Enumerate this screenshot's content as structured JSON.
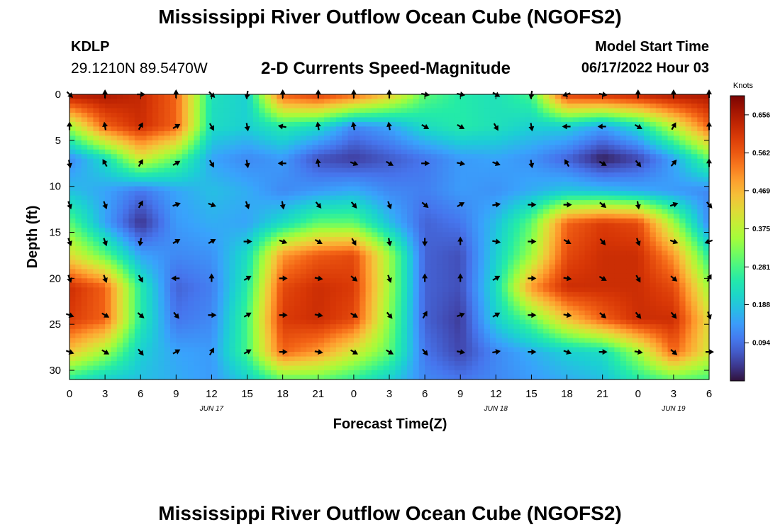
{
  "header": {
    "title": "Mississippi River Outflow Ocean Cube (NGOFS2)",
    "station_id": "KDLP",
    "coordinates": "29.1210N  89.5470W",
    "subtitle": "2-D Currents Speed-Magnitude",
    "model_start_label": "Model Start Time",
    "model_start_value": "06/17/2022 Hour 03"
  },
  "footer": {
    "title": "Mississippi River Outflow Ocean Cube (NGOFS2)"
  },
  "colors": {
    "low": "#30123b",
    "mid": "#2ef3a8",
    "high": "#7a0403",
    "arrow": "#000000"
  },
  "chart_data": {
    "type": "heatmap",
    "xlabel": "Forecast Time(Z)",
    "ylabel": "Depth (ft)",
    "colorbar_label": "Knots",
    "x_ticks": [
      {
        "hours": 0,
        "label": "0"
      },
      {
        "hours": 3,
        "label": "3"
      },
      {
        "hours": 6,
        "label": "6"
      },
      {
        "hours": 9,
        "label": "9"
      },
      {
        "hours": 12,
        "label": "12"
      },
      {
        "hours": 15,
        "label": "15"
      },
      {
        "hours": 18,
        "label": "18"
      },
      {
        "hours": 21,
        "label": "21"
      },
      {
        "hours": 24,
        "label": "0"
      },
      {
        "hours": 27,
        "label": "3"
      },
      {
        "hours": 30,
        "label": "6"
      },
      {
        "hours": 33,
        "label": "9"
      },
      {
        "hours": 36,
        "label": "12"
      },
      {
        "hours": 39,
        "label": "15"
      },
      {
        "hours": 42,
        "label": "18"
      },
      {
        "hours": 45,
        "label": "21"
      },
      {
        "hours": 48,
        "label": "0"
      },
      {
        "hours": 51,
        "label": "3"
      },
      {
        "hours": 54,
        "label": "6"
      }
    ],
    "date_labels": [
      {
        "hours": 12,
        "label": "JUN 17"
      },
      {
        "hours": 36,
        "label": "JUN 18"
      },
      {
        "hours": 51,
        "label": "JUN 19"
      }
    ],
    "xlim": [
      0,
      54
    ],
    "ylim": [
      0,
      31
    ],
    "y_ticks": [
      0,
      5,
      10,
      15,
      20,
      25,
      30
    ],
    "colorbar_ticks": [
      "0.656",
      "0.562",
      "0.469",
      "0.375",
      "0.281",
      "0.188",
      "0.094"
    ],
    "colorbar_range": [
      0.0,
      0.703
    ],
    "speed_grid": {
      "x_hours": [
        0,
        3,
        6,
        9,
        12,
        15,
        18,
        21,
        24,
        27,
        30,
        33,
        36,
        39,
        42,
        45,
        48,
        51,
        54
      ],
      "depth_ft": [
        0,
        3.5,
        7,
        10.5,
        14,
        17.5,
        21,
        24.5,
        28,
        31
      ],
      "values": [
        [
          0.66,
          0.66,
          0.63,
          0.55,
          0.23,
          0.2,
          0.56,
          0.6,
          0.55,
          0.45,
          0.3,
          0.25,
          0.23,
          0.28,
          0.6,
          0.62,
          0.64,
          0.66,
          0.66
        ],
        [
          0.35,
          0.55,
          0.62,
          0.55,
          0.22,
          0.2,
          0.25,
          0.22,
          0.12,
          0.15,
          0.22,
          0.25,
          0.23,
          0.2,
          0.2,
          0.15,
          0.22,
          0.38,
          0.55
        ],
        [
          0.12,
          0.22,
          0.4,
          0.3,
          0.15,
          0.12,
          0.14,
          0.06,
          0.04,
          0.07,
          0.1,
          0.14,
          0.15,
          0.13,
          0.08,
          0.01,
          0.05,
          0.15,
          0.3
        ],
        [
          0.18,
          0.15,
          0.1,
          0.15,
          0.18,
          0.16,
          0.12,
          0.14,
          0.16,
          0.12,
          0.11,
          0.14,
          0.13,
          0.16,
          0.19,
          0.18,
          0.16,
          0.14,
          0.12
        ],
        [
          0.3,
          0.15,
          0.03,
          0.14,
          0.16,
          0.15,
          0.22,
          0.3,
          0.3,
          0.18,
          0.08,
          0.1,
          0.18,
          0.3,
          0.55,
          0.6,
          0.58,
          0.35,
          0.12
        ],
        [
          0.42,
          0.3,
          0.15,
          0.12,
          0.13,
          0.22,
          0.5,
          0.56,
          0.58,
          0.35,
          0.08,
          0.06,
          0.2,
          0.35,
          0.58,
          0.62,
          0.62,
          0.5,
          0.25
        ],
        [
          0.62,
          0.55,
          0.25,
          0.08,
          0.11,
          0.25,
          0.58,
          0.62,
          0.6,
          0.35,
          0.08,
          0.06,
          0.22,
          0.5,
          0.62,
          0.62,
          0.62,
          0.58,
          0.35
        ],
        [
          0.6,
          0.55,
          0.25,
          0.1,
          0.12,
          0.28,
          0.6,
          0.62,
          0.58,
          0.33,
          0.08,
          0.04,
          0.2,
          0.3,
          0.45,
          0.55,
          0.62,
          0.62,
          0.42
        ],
        [
          0.45,
          0.35,
          0.2,
          0.15,
          0.14,
          0.28,
          0.55,
          0.5,
          0.4,
          0.3,
          0.1,
          0.05,
          0.12,
          0.16,
          0.2,
          0.22,
          0.35,
          0.55,
          0.4
        ],
        [
          0.25,
          0.2,
          0.18,
          0.16,
          0.14,
          0.2,
          0.3,
          0.3,
          0.26,
          0.2,
          0.12,
          0.1,
          0.12,
          0.14,
          0.16,
          0.18,
          0.25,
          0.3,
          0.28
        ]
      ]
    },
    "vectors": {
      "x_hours": [
        0,
        3,
        6,
        9,
        12,
        15,
        18,
        21,
        24,
        27,
        30,
        33,
        36,
        39,
        42,
        45,
        48,
        51,
        54
      ],
      "depth_ft": [
        0,
        3.5,
        7.5,
        12,
        16,
        20,
        24,
        28
      ],
      "direction_deg": [
        [
          135,
          0,
          90,
          0,
          135,
          190,
          0,
          0,
          0,
          0,
          100,
          100,
          120,
          190,
          250,
          100,
          0,
          0,
          0
        ],
        [
          0,
          350,
          30,
          60,
          150,
          170,
          280,
          350,
          350,
          350,
          120,
          120,
          150,
          170,
          270,
          270,
          120,
          30,
          0
        ],
        [
          170,
          330,
          30,
          60,
          150,
          170,
          270,
          350,
          110,
          120,
          90,
          100,
          110,
          170,
          330,
          120,
          140,
          40,
          0
        ],
        [
          160,
          160,
          30,
          70,
          110,
          160,
          170,
          140,
          140,
          160,
          130,
          60,
          80,
          90,
          90,
          130,
          170,
          70,
          140
        ],
        [
          160,
          160,
          190,
          60,
          60,
          90,
          110,
          120,
          150,
          170,
          180,
          0,
          100,
          90,
          120,
          140,
          160,
          110,
          250
        ],
        [
          160,
          160,
          150,
          270,
          0,
          60,
          90,
          100,
          130,
          160,
          0,
          0,
          60,
          90,
          100,
          120,
          150,
          130,
          30
        ],
        [
          110,
          120,
          130,
          140,
          90,
          60,
          90,
          100,
          120,
          140,
          30,
          70,
          60,
          90,
          100,
          130,
          140,
          140,
          160
        ],
        [
          110,
          120,
          140,
          60,
          30,
          60,
          90,
          100,
          120,
          120,
          140,
          100,
          80,
          90,
          110,
          90,
          100,
          130,
          90
        ]
      ]
    }
  }
}
